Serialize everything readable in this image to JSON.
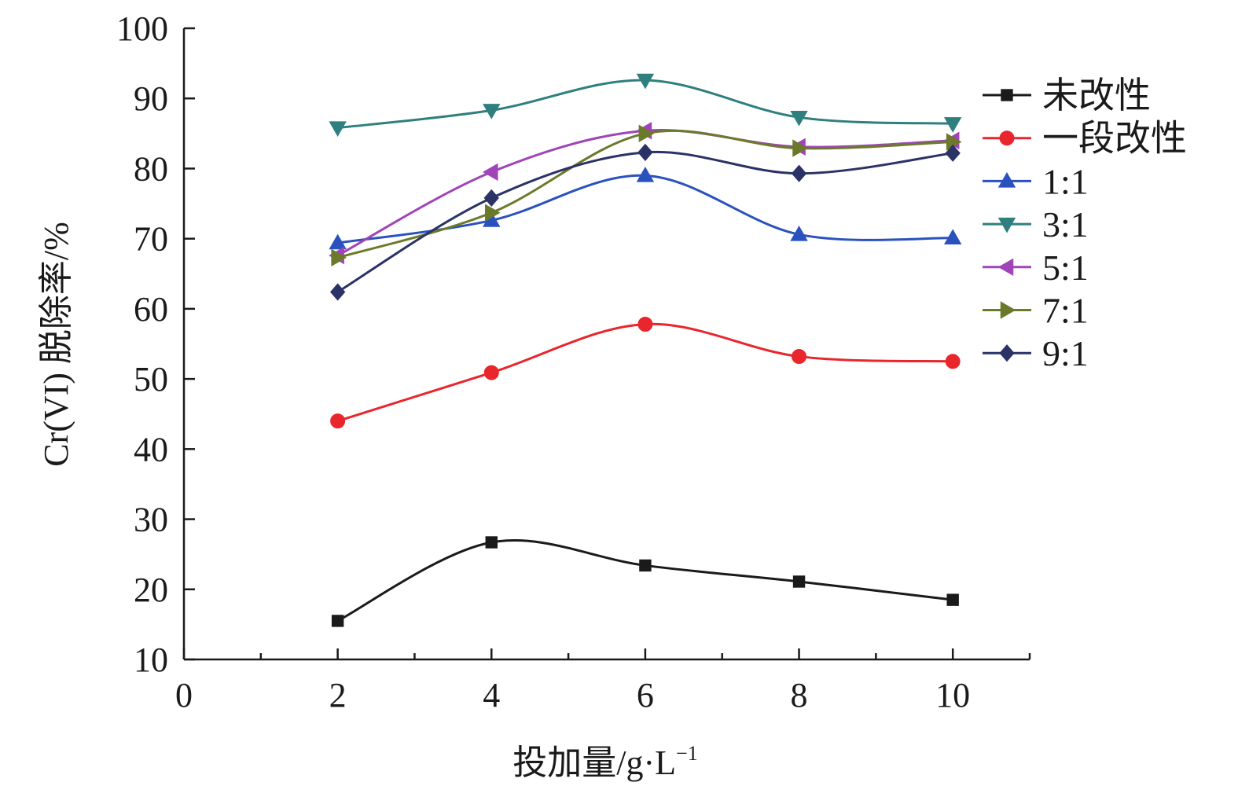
{
  "chart_data": {
    "type": "line",
    "smooth": true,
    "xlabel": "投加量/g·L",
    "xlabel_sup": "−1",
    "ylabel": "Cr(VI) 脱除率/%",
    "x": [
      2,
      4,
      6,
      8,
      10
    ],
    "xlim": [
      0,
      11
    ],
    "xticks": [
      0,
      2,
      4,
      6,
      8,
      10
    ],
    "ylim": [
      10,
      100
    ],
    "yticks": [
      10,
      20,
      30,
      40,
      50,
      60,
      70,
      80,
      90,
      100
    ],
    "grid": false,
    "legend_position": "right",
    "series": [
      {
        "name": "未改性",
        "values": [
          15.5,
          26.7,
          23.4,
          21.1,
          18.5
        ],
        "color": "#1a1a1a",
        "marker": "square"
      },
      {
        "name": "一段改性",
        "values": [
          44.0,
          50.9,
          57.8,
          53.2,
          52.5
        ],
        "color": "#e8262b",
        "marker": "circle"
      },
      {
        "name": "1:1",
        "values": [
          69.4,
          72.6,
          79.0,
          70.6,
          70.1
        ],
        "color": "#2a52be",
        "marker": "triangle-up"
      },
      {
        "name": "3:1",
        "values": [
          85.8,
          88.3,
          92.6,
          87.3,
          86.4
        ],
        "color": "#2f7f7f",
        "marker": "triangle-down"
      },
      {
        "name": "5:1",
        "values": [
          67.6,
          79.5,
          85.4,
          83.1,
          84.0
        ],
        "color": "#a044b8",
        "marker": "triangle-left"
      },
      {
        "name": "7:1",
        "values": [
          67.3,
          73.7,
          85.0,
          82.9,
          83.8
        ],
        "color": "#6b7a2a",
        "marker": "triangle-right"
      },
      {
        "name": "9:1",
        "values": [
          62.4,
          75.8,
          82.3,
          79.3,
          82.2
        ],
        "color": "#2a3266",
        "marker": "diamond"
      }
    ]
  }
}
